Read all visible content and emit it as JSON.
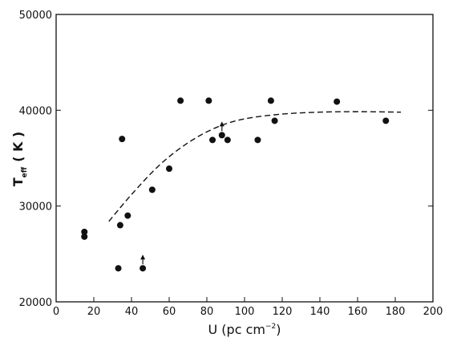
{
  "chart_data": {
    "type": "scatter",
    "xlabel": "U (pc cm",
    "xlabel_sup": "−2",
    "xlabel_end": ")",
    "ylabel_main": "T",
    "ylabel_sub": "eff",
    "ylabel_unit": "( K )",
    "xlim": [
      0,
      200
    ],
    "ylim": [
      20000,
      50000
    ],
    "x_ticks": [
      0,
      20,
      40,
      60,
      80,
      100,
      120,
      140,
      160,
      180,
      200
    ],
    "y_ticks": [
      20000,
      30000,
      40000,
      50000
    ],
    "x_tick_labels": [
      "0",
      "20",
      "40",
      "60",
      "80",
      "100",
      "120",
      "140",
      "160",
      "180",
      "200"
    ],
    "y_tick_labels": [
      "20000",
      "30000",
      "40000",
      "50000"
    ],
    "grid": false,
    "series": [
      {
        "marker": "filled-circle",
        "color": "#111111",
        "points": [
          {
            "x": 15,
            "y": 27300
          },
          {
            "x": 15,
            "y": 26800
          },
          {
            "x": 33,
            "y": 23500
          },
          {
            "x": 34,
            "y": 28000
          },
          {
            "x": 35,
            "y": 37000
          },
          {
            "x": 38,
            "y": 29000
          },
          {
            "x": 46,
            "y": 23500,
            "lower_limit": true
          },
          {
            "x": 51,
            "y": 31700
          },
          {
            "x": 60,
            "y": 33900
          },
          {
            "x": 66,
            "y": 41000
          },
          {
            "x": 81,
            "y": 41000
          },
          {
            "x": 83,
            "y": 36900
          },
          {
            "x": 88,
            "y": 37400,
            "lower_limit": true
          },
          {
            "x": 91,
            "y": 36900
          },
          {
            "x": 107,
            "y": 36900
          },
          {
            "x": 114,
            "y": 41000
          },
          {
            "x": 116,
            "y": 38900
          },
          {
            "x": 149,
            "y": 40900
          },
          {
            "x": 175,
            "y": 38900
          }
        ]
      }
    ],
    "fit_curve": {
      "style": "dashed",
      "color": "#111111",
      "points": [
        {
          "x": 28,
          "y": 28400
        },
        {
          "x": 40,
          "y": 31200
        },
        {
          "x": 55,
          "y": 34300
        },
        {
          "x": 70,
          "y": 36600
        },
        {
          "x": 85,
          "y": 38200
        },
        {
          "x": 100,
          "y": 39100
        },
        {
          "x": 120,
          "y": 39600
        },
        {
          "x": 140,
          "y": 39800
        },
        {
          "x": 160,
          "y": 39850
        },
        {
          "x": 183,
          "y": 39800
        }
      ]
    }
  }
}
